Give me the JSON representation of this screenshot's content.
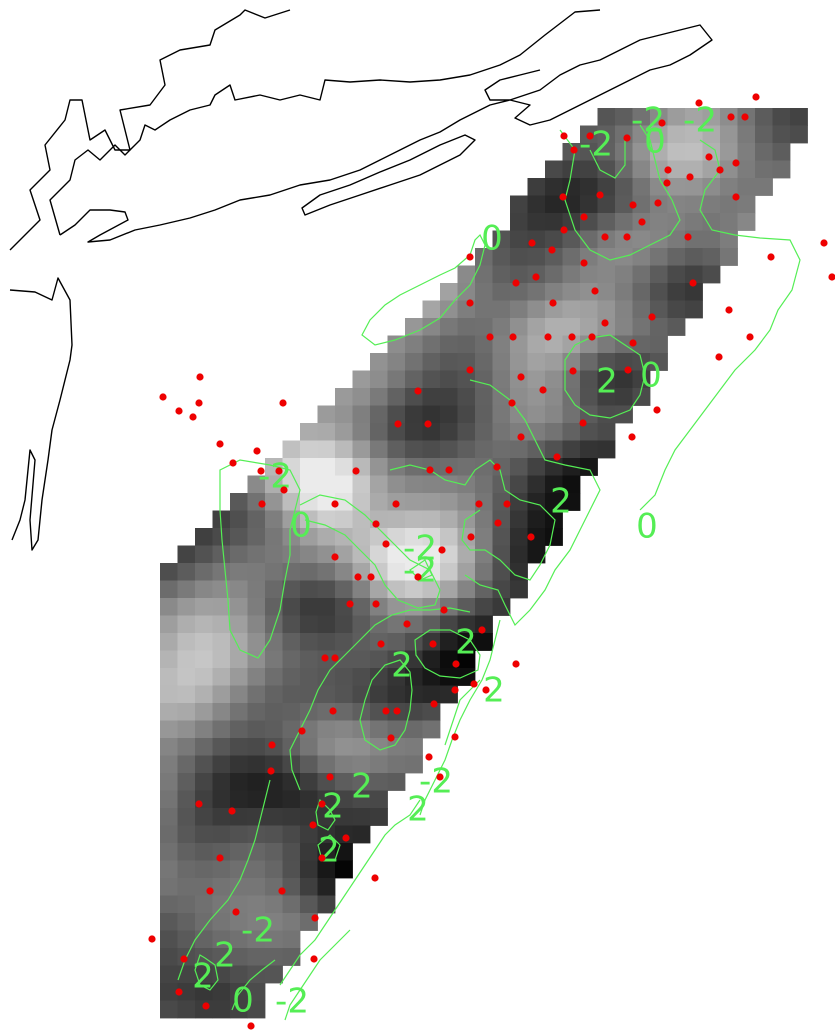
{
  "map": {
    "colors": {
      "background": "#ffffff",
      "coastline": "#000000",
      "contour": "#55ee55",
      "contour_label": "#55ee55",
      "station_point": "#ee0000",
      "field_low": "#eeeeee",
      "field_high": "#000000"
    },
    "field": {
      "type": "heatmap",
      "colormap": "grayscale",
      "description_scale": "light = low, dark = high"
    },
    "contour_levels": [
      "-2",
      "0",
      "2"
    ],
    "contour_labels": [
      "-2",
      "-2",
      "-2",
      "0",
      "0",
      "2",
      "0",
      "-2",
      "0",
      "0",
      "-2",
      "-2",
      "2",
      "2",
      "2",
      "2",
      "2",
      "2",
      "-2",
      "2",
      "2",
      "-2",
      "2",
      "2",
      "2",
      "2",
      "2",
      "0",
      "-2"
    ]
  }
}
